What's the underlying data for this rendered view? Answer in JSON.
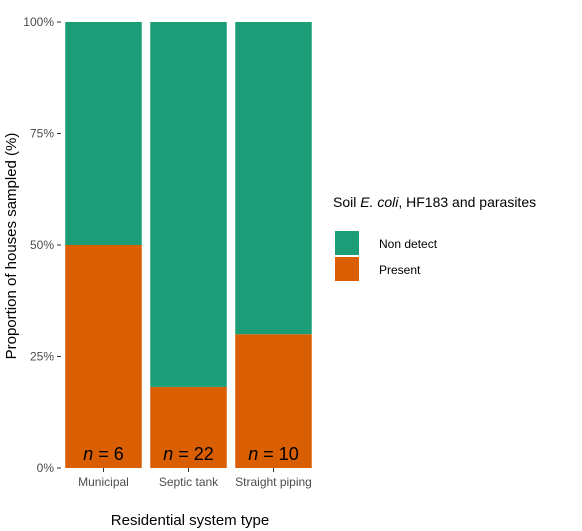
{
  "chart_data": {
    "type": "bar",
    "stacked": true,
    "categories": [
      "Municipal",
      "Septic tank",
      "Straight piping"
    ],
    "series": [
      {
        "name": "Present",
        "color": "#D95F02",
        "values": [
          50,
          18.18,
          30
        ]
      },
      {
        "name": "Non detect",
        "color": "#1B9E77",
        "values": [
          50,
          81.82,
          70
        ]
      }
    ],
    "sample_sizes": [
      6,
      22,
      10
    ],
    "sample_prefix": "n",
    "sample_eq": " = ",
    "xlabel": "Residential system type",
    "ylabel": "Proportion of houses sampled (%)",
    "ylim": [
      0,
      100
    ],
    "yticks": [
      0,
      25,
      50,
      75,
      100
    ],
    "ytick_suffix": "%",
    "legend": {
      "title_italic": "E. coli",
      "title_prefix": "Soil ",
      "title_suffix": ", HF183 and parasites",
      "entries": [
        "Non detect",
        "Present"
      ],
      "placement": "right"
    },
    "grid": false
  }
}
